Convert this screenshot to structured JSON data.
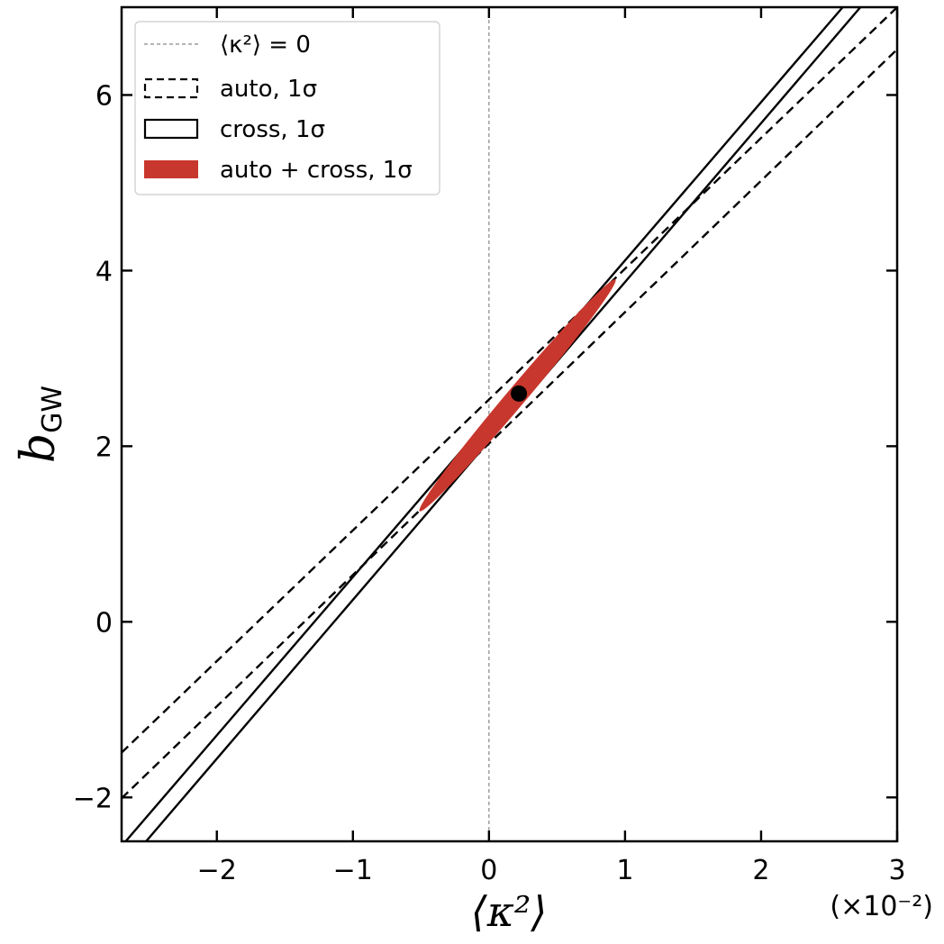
{
  "chart_data": {
    "type": "line",
    "title": "",
    "xlabel": "⟨κ²⟩",
    "x_offset_label": "(×10⁻²)",
    "ylabel": "b",
    "ylabel_subscript": "GW",
    "xlim": [
      -2.7,
      3.0
    ],
    "ylim": [
      -2.5,
      7.0
    ],
    "xticks": [
      -2,
      -1,
      0,
      1,
      2,
      3
    ],
    "xtick_labels": [
      "−2",
      "−1",
      "0",
      "1",
      "2",
      "3"
    ],
    "yticks": [
      -2,
      0,
      2,
      4,
      6
    ],
    "ytick_labels": [
      "−2",
      "0",
      "2",
      "4",
      "6"
    ],
    "grid": false,
    "legend_position": "top-left",
    "legend": [
      {
        "label": "⟨κ²⟩ = 0",
        "style": "thin-dashed-line"
      },
      {
        "label": "auto, 1σ",
        "style": "dashed-box"
      },
      {
        "label": "cross, 1σ",
        "style": "solid-box"
      },
      {
        "label": "auto + cross, 1σ",
        "style": "filled-box"
      }
    ],
    "reference_line": {
      "x": 0
    },
    "series": [
      {
        "name": "auto, 1σ",
        "style": "dashed",
        "lines": [
          {
            "x": [
              -2.7,
              3.0
            ],
            "y": [
              -1.49,
              7.0
            ]
          },
          {
            "x": [
              -2.7,
              3.0
            ],
            "y": [
              -2.01,
              6.52
            ]
          }
        ]
      },
      {
        "name": "cross, 1σ",
        "style": "solid",
        "lines": [
          {
            "x": [
              -2.67,
              2.6
            ],
            "y": [
              -2.5,
              7.0
            ]
          },
          {
            "x": [
              -2.52,
              2.73
            ],
            "y": [
              -2.5,
              7.0
            ]
          }
        ]
      },
      {
        "name": "auto + cross, 1σ",
        "style": "filled",
        "ellipse": {
          "cx": 0.21,
          "cy": 2.58,
          "half_length": [
            0.72,
            1.32
          ],
          "half_width": 0.07
        }
      }
    ],
    "marker": {
      "x": 0.22,
      "y": 2.6
    },
    "colors": {
      "fill": "#c8372d",
      "line": "#000000",
      "reference": "#888888"
    }
  }
}
